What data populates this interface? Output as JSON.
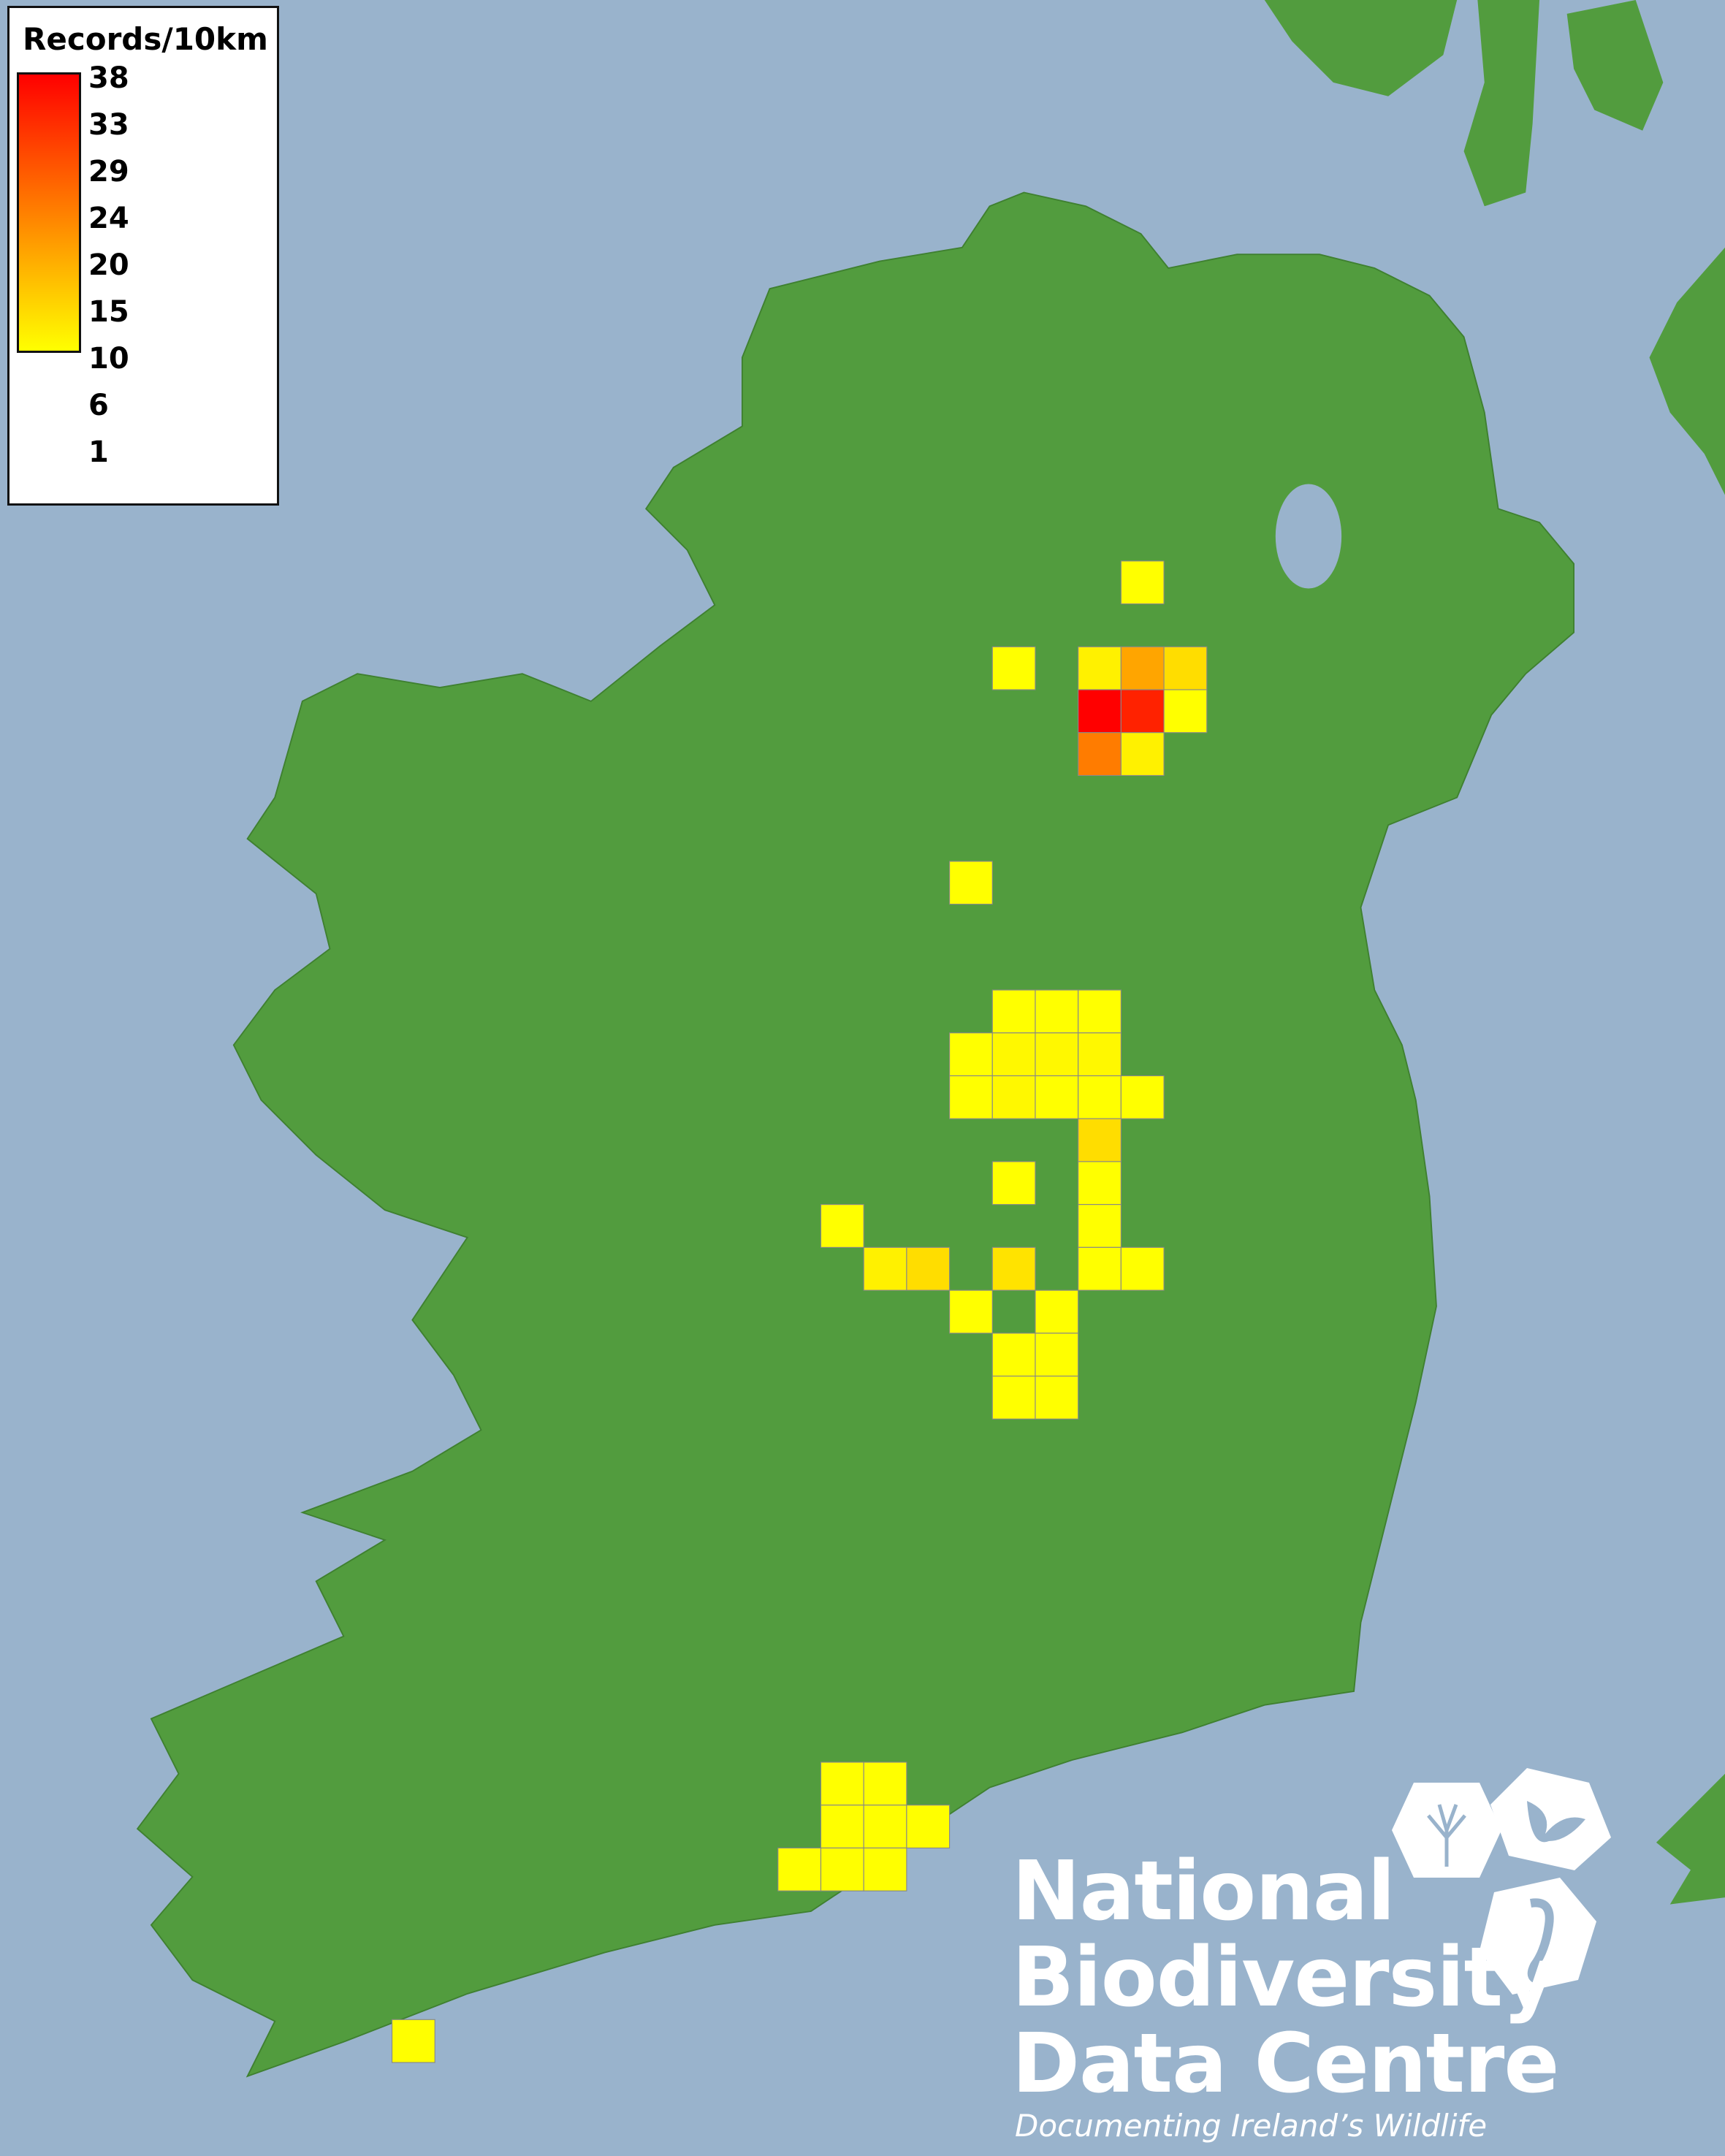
{
  "legend": {
    "title": "Records/10km",
    "ticks": [
      "38",
      "33",
      "29",
      "24",
      "20",
      "15",
      "10",
      "6",
      "1"
    ],
    "color_low": "#ffff00",
    "color_mid": "#ff8000",
    "color_high": "#ff0000",
    "min": 1,
    "max": 38
  },
  "map": {
    "sea_color": "#99b3cc",
    "land_color": "#4f9a3c",
    "grid_unit": "10km",
    "cells": [
      {
        "col": 8,
        "row": 0,
        "value": 1
      },
      {
        "col": 5,
        "row": 2,
        "value": 1
      },
      {
        "col": 7,
        "row": 2,
        "value": 3
      },
      {
        "col": 8,
        "row": 2,
        "value": 14
      },
      {
        "col": 9,
        "row": 2,
        "value": 6
      },
      {
        "col": 7,
        "row": 3,
        "value": 38
      },
      {
        "col": 8,
        "row": 3,
        "value": 33
      },
      {
        "col": 9,
        "row": 3,
        "value": 1
      },
      {
        "col": 7,
        "row": 4,
        "value": 20
      },
      {
        "col": 8,
        "row": 4,
        "value": 3
      },
      {
        "col": 4,
        "row": 7,
        "value": 1
      },
      {
        "col": 5,
        "row": 10,
        "value": 1
      },
      {
        "col": 6,
        "row": 10,
        "value": 1
      },
      {
        "col": 7,
        "row": 10,
        "value": 1
      },
      {
        "col": 4,
        "row": 11,
        "value": 1
      },
      {
        "col": 5,
        "row": 11,
        "value": 2
      },
      {
        "col": 6,
        "row": 11,
        "value": 2
      },
      {
        "col": 7,
        "row": 11,
        "value": 2
      },
      {
        "col": 4,
        "row": 12,
        "value": 1
      },
      {
        "col": 5,
        "row": 12,
        "value": 2
      },
      {
        "col": 6,
        "row": 12,
        "value": 1
      },
      {
        "col": 7,
        "row": 12,
        "value": 1
      },
      {
        "col": 8,
        "row": 12,
        "value": 1
      },
      {
        "col": 7,
        "row": 13,
        "value": 6
      },
      {
        "col": 5,
        "row": 14,
        "value": 1
      },
      {
        "col": 7,
        "row": 14,
        "value": 1
      },
      {
        "col": 1,
        "row": 15,
        "value": 1
      },
      {
        "col": 7,
        "row": 15,
        "value": 1
      },
      {
        "col": 2,
        "row": 16,
        "value": 3
      },
      {
        "col": 3,
        "row": 16,
        "value": 6
      },
      {
        "col": 5,
        "row": 16,
        "value": 5
      },
      {
        "col": 7,
        "row": 16,
        "value": 1
      },
      {
        "col": 8,
        "row": 16,
        "value": 1
      },
      {
        "col": 4,
        "row": 17,
        "value": 1
      },
      {
        "col": 6,
        "row": 17,
        "value": 1
      },
      {
        "col": 5,
        "row": 18,
        "value": 1
      },
      {
        "col": 6,
        "row": 18,
        "value": 1
      },
      {
        "col": 5,
        "row": 19,
        "value": 1
      },
      {
        "col": 6,
        "row": 19,
        "value": 1
      },
      {
        "col": 1,
        "row": 28,
        "value": 1
      },
      {
        "col": 2,
        "row": 28,
        "value": 1
      },
      {
        "col": 1,
        "row": 29,
        "value": 1
      },
      {
        "col": 2,
        "row": 29,
        "value": 1
      },
      {
        "col": 3,
        "row": 29,
        "value": 1
      },
      {
        "col": 0,
        "row": 30,
        "value": 1
      },
      {
        "col": 1,
        "row": 30,
        "value": 1
      },
      {
        "col": 2,
        "row": 30,
        "value": 1
      },
      {
        "col": -9,
        "row": 34,
        "value": 1
      }
    ]
  },
  "logo": {
    "line1": "National",
    "line2": "Biodiversity",
    "line3": "Data Centre",
    "tagline": "Documenting Ireland’s Wildlife",
    "icons": [
      "tree-icon",
      "butterfly-icon",
      "seahorse-icon"
    ]
  }
}
